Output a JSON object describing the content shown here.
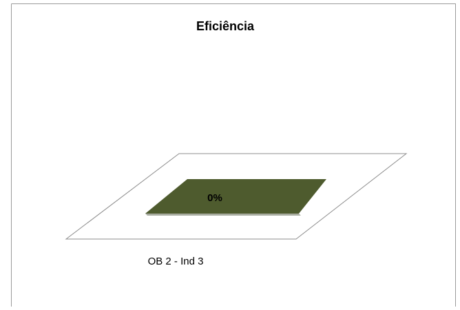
{
  "chart_data": {
    "type": "bar",
    "title": "Eficiência",
    "categories": [
      "OB 2 - Ind 3"
    ],
    "series": [
      {
        "values": [
          0
        ]
      }
    ],
    "data_labels": [
      "0%"
    ],
    "xlabel": "",
    "ylabel": "",
    "ylim": [
      0,
      1
    ],
    "grid": false,
    "legend": "none",
    "colors": {
      "bar": "#4e5b2e",
      "bar_edge": "#a8aca0",
      "floor_edge": "#8c8c8c",
      "frame": "#9a9a9a"
    }
  }
}
